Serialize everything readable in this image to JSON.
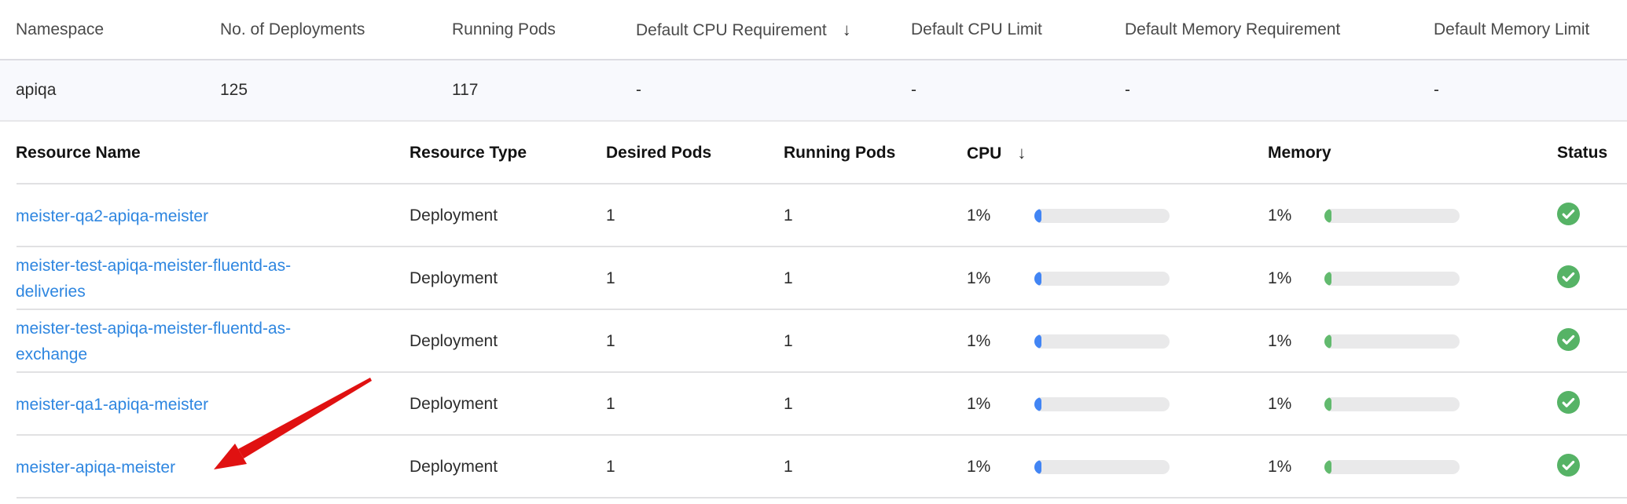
{
  "namespace_table": {
    "columns": [
      "Namespace",
      "No. of Deployments",
      "Running Pods",
      "Default CPU Requirement",
      "Default CPU Limit",
      "Default Memory Requirement",
      "Default Memory Limit"
    ],
    "sort_column": "Default CPU Requirement",
    "sort_icon": "↓",
    "row": {
      "namespace": "apiqa",
      "deployments": "125",
      "running_pods": "117",
      "default_cpu_requirement": "-",
      "default_cpu_limit": "-",
      "default_memory_requirement": "-",
      "default_memory_limit": "-"
    }
  },
  "resource_table": {
    "columns": [
      "Resource Name",
      "Resource Type",
      "Desired Pods",
      "Running Pods",
      "CPU",
      "Memory",
      "Status"
    ],
    "sort_column": "CPU",
    "sort_icon": "↓",
    "rows": [
      {
        "name": "meister-qa2-apiqa-meister",
        "type": "Deployment",
        "desired": "1",
        "running": "1",
        "cpu": "1%",
        "cpu_value": 1,
        "memory": "1%",
        "memory_value": 1,
        "status": "ok"
      },
      {
        "name": "meister-test-apiqa-meister-fluentd-as-deliveries",
        "type": "Deployment",
        "desired": "1",
        "running": "1",
        "cpu": "1%",
        "cpu_value": 1,
        "memory": "1%",
        "memory_value": 1,
        "status": "ok"
      },
      {
        "name": "meister-test-apiqa-meister-fluentd-as-exchange",
        "type": "Deployment",
        "desired": "1",
        "running": "1",
        "cpu": "1%",
        "cpu_value": 1,
        "memory": "1%",
        "memory_value": 1,
        "status": "ok"
      },
      {
        "name": "meister-qa1-apiqa-meister",
        "type": "Deployment",
        "desired": "1",
        "running": "1",
        "cpu": "1%",
        "cpu_value": 1,
        "memory": "1%",
        "memory_value": 1,
        "status": "ok"
      },
      {
        "name": "meister-apiqa-meister",
        "type": "Deployment",
        "desired": "1",
        "running": "1",
        "cpu": "1%",
        "cpu_value": 1,
        "memory": "1%",
        "memory_value": 1,
        "status": "ok"
      }
    ]
  },
  "annotation": {
    "type": "red-arrow",
    "points_to": "meister-apiqa-meister",
    "color": "#e01111"
  },
  "colors": {
    "link_blue": "#2e86e0",
    "cpu_bar_fill": "#4285f4",
    "memory_bar_fill": "#62ba6e",
    "status_ok_green": "#56b366",
    "highlight_row_bg": "#f8f9fd",
    "arrow_red": "#e01111"
  }
}
